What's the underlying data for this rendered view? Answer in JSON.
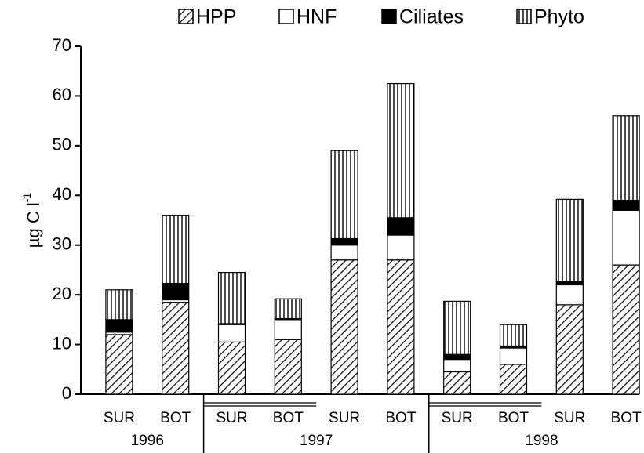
{
  "chart_data": {
    "type": "stacked_bar",
    "y_label": "µg C l",
    "y_label_sup": "-1",
    "groups": [
      {
        "name": "1996",
        "categories": [
          "SUR",
          "BOT"
        ]
      },
      {
        "name": "1997",
        "categories": [
          "SUR",
          "BOT",
          "SUR",
          "BOT"
        ]
      },
      {
        "name": "1998",
        "categories": [
          "SUR",
          "BOT",
          "SUR",
          "BOT"
        ]
      }
    ],
    "series": [
      {
        "name": "HPP",
        "color": "#000000",
        "pattern": "diagonal",
        "values": [
          12,
          18.5,
          10.5,
          11,
          27,
          27,
          4.5,
          6,
          18,
          26
        ]
      },
      {
        "name": "HNF",
        "color": "#ffffff",
        "pattern": "solid",
        "values": [
          0.5,
          0.5,
          3.5,
          4,
          3,
          5,
          2.5,
          3.3,
          4,
          11
        ]
      },
      {
        "name": "Ciliates",
        "color": "#000000",
        "pattern": "solid",
        "values": [
          2.5,
          3.3,
          0.2,
          0.2,
          1.3,
          3.5,
          1,
          0.4,
          0.7,
          2
        ]
      },
      {
        "name": "Phyto",
        "color": "#000000",
        "pattern": "vertical",
        "values": [
          6,
          13.7,
          10.3,
          4,
          17.7,
          27,
          10.7,
          4.3,
          16.5,
          17
        ]
      }
    ],
    "ylim": [
      0,
      70
    ],
    "yticks": [
      0,
      10,
      20,
      30,
      40,
      50,
      60,
      70
    ]
  }
}
